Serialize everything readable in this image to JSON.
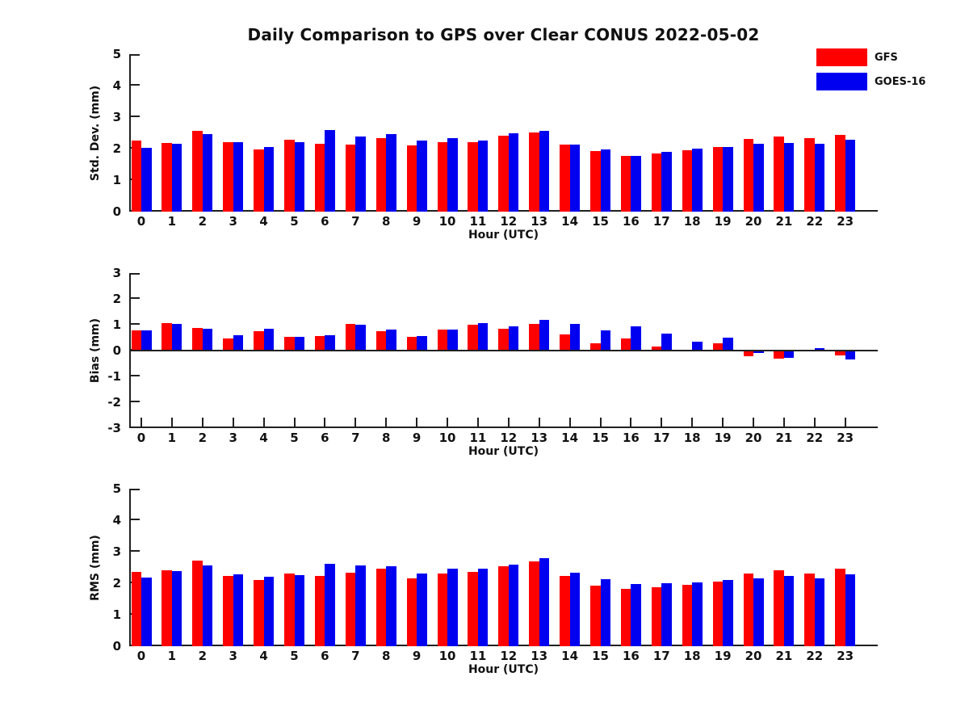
{
  "title": "Daily Comparison to GPS over Clear CONUS 2022-05-02",
  "legend": {
    "items": [
      {
        "label": "GFS",
        "color": "#ff0000"
      },
      {
        "label": "GOES-16",
        "color": "#0000f0"
      }
    ]
  },
  "colors": {
    "gfs": "#ff0000",
    "goes16": "#0000f0",
    "axis": "#202020"
  },
  "chart_data": [
    {
      "type": "bar",
      "title": "",
      "ylabel": "Std. Dev. (mm)",
      "xlabel": "Hour (UTC)",
      "ylim": [
        0,
        5
      ],
      "yticks": [
        0,
        1,
        2,
        3,
        4,
        5
      ],
      "grid": false,
      "legend_position": "top-right",
      "categories": [
        "0",
        "1",
        "2",
        "3",
        "4",
        "5",
        "6",
        "7",
        "8",
        "9",
        "10",
        "11",
        "12",
        "13",
        "14",
        "15",
        "16",
        "17",
        "18",
        "19",
        "20",
        "21",
        "22",
        "23"
      ],
      "series": [
        {
          "name": "GFS",
          "color": "#ff0000",
          "values": [
            2.25,
            2.17,
            2.57,
            2.2,
            1.98,
            2.27,
            2.16,
            2.12,
            2.33,
            2.1,
            2.2,
            2.2,
            2.42,
            2.52,
            2.14,
            1.93,
            1.77,
            1.85,
            1.95,
            2.05,
            2.3,
            2.38,
            2.33,
            2.43
          ]
        },
        {
          "name": "GOES-16",
          "color": "#0000f0",
          "values": [
            2.02,
            2.15,
            2.45,
            2.2,
            2.05,
            2.21,
            2.58,
            2.38,
            2.45,
            2.25,
            2.33,
            2.25,
            2.48,
            2.56,
            2.14,
            1.98,
            1.77,
            1.9,
            2.0,
            2.05,
            2.16,
            2.19,
            2.15,
            2.28
          ]
        }
      ]
    },
    {
      "type": "bar",
      "title": "",
      "ylabel": "Bias (mm)",
      "xlabel": "Hour (UTC)",
      "ylim": [
        -3,
        3
      ],
      "yticks": [
        -3,
        -2,
        -1,
        0,
        1,
        2,
        3
      ],
      "grid": false,
      "zero_line": true,
      "categories": [
        "0",
        "1",
        "2",
        "3",
        "4",
        "5",
        "6",
        "7",
        "8",
        "9",
        "10",
        "11",
        "12",
        "13",
        "14",
        "15",
        "16",
        "17",
        "18",
        "19",
        "20",
        "21",
        "22",
        "23"
      ],
      "series": [
        {
          "name": "GFS",
          "color": "#ff0000",
          "values": [
            0.78,
            1.07,
            0.88,
            0.48,
            0.75,
            0.52,
            0.57,
            1.03,
            0.76,
            0.54,
            0.81,
            1.01,
            0.85,
            1.02,
            0.61,
            0.28,
            0.46,
            0.16,
            0.02,
            0.27,
            -0.22,
            -0.32,
            0.04,
            -0.2
          ]
        },
        {
          "name": "GOES-16",
          "color": "#0000f0",
          "values": [
            0.78,
            1.04,
            0.84,
            0.58,
            0.84,
            0.52,
            0.58,
            0.99,
            0.82,
            0.57,
            0.82,
            1.07,
            0.94,
            1.18,
            1.02,
            0.78,
            0.93,
            0.65,
            0.33,
            0.5,
            -0.1,
            -0.28,
            0.09,
            -0.33
          ]
        }
      ]
    },
    {
      "type": "bar",
      "title": "",
      "ylabel": "RMS (mm)",
      "xlabel": "Hour (UTC)",
      "ylim": [
        0,
        5
      ],
      "yticks": [
        0,
        1,
        2,
        3,
        4,
        5
      ],
      "grid": false,
      "categories": [
        "0",
        "1",
        "2",
        "3",
        "4",
        "5",
        "6",
        "7",
        "8",
        "9",
        "10",
        "11",
        "12",
        "13",
        "14",
        "15",
        "16",
        "17",
        "18",
        "19",
        "20",
        "21",
        "22",
        "23"
      ],
      "series": [
        {
          "name": "GFS",
          "color": "#ff0000",
          "values": [
            2.36,
            2.42,
            2.71,
            2.23,
            2.1,
            2.31,
            2.24,
            2.34,
            2.45,
            2.15,
            2.31,
            2.37,
            2.53,
            2.7,
            2.22,
            1.93,
            1.82,
            1.87,
            1.95,
            2.05,
            2.31,
            2.42,
            2.31,
            2.45
          ]
        },
        {
          "name": "GOES-16",
          "color": "#0000f0",
          "values": [
            2.18,
            2.38,
            2.57,
            2.29,
            2.21,
            2.25,
            2.62,
            2.57,
            2.55,
            2.3,
            2.47,
            2.47,
            2.6,
            2.8,
            2.33,
            2.12,
            1.97,
            2.0,
            2.03,
            2.1,
            2.16,
            2.22,
            2.15,
            2.28
          ]
        }
      ]
    }
  ]
}
